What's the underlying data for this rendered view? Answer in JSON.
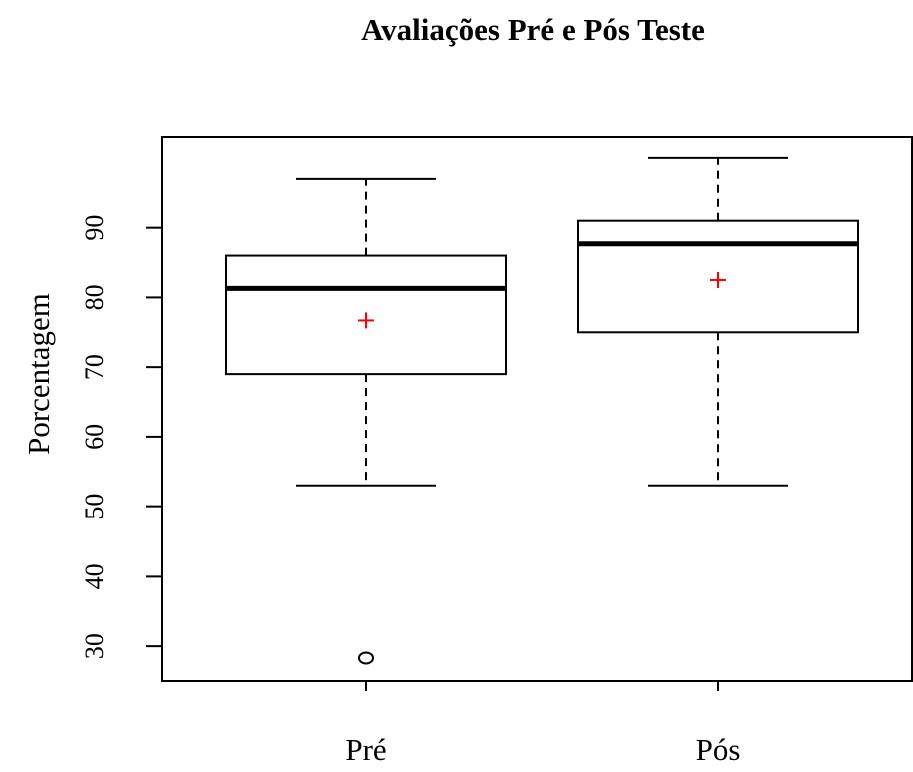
{
  "chart_data": {
    "type": "boxplot",
    "title": "Avaliações Pré e Pós Teste",
    "xlabel": "",
    "ylabel": "Porcentagem",
    "ylim": [
      25,
      103
    ],
    "yticks": [
      30,
      40,
      50,
      60,
      70,
      80,
      90
    ],
    "ytick_labels": [
      "30",
      "40",
      "50",
      "60",
      "70",
      "80",
      "90"
    ],
    "categories": [
      "Pré",
      "Pós"
    ],
    "boxes": [
      {
        "category": "Pré",
        "whisker_low": 53,
        "q1": 69,
        "median": 81.3,
        "q3": 86,
        "whisker_high": 97,
        "mean": 76.7,
        "outliers": [
          28.3
        ]
      },
      {
        "category": "Pós",
        "whisker_low": 53,
        "q1": 75,
        "median": 87.7,
        "q3": 91,
        "whisker_high": 100,
        "mean": 82.5,
        "outliers": []
      }
    ],
    "grid": false,
    "colors": {
      "box": "#000000",
      "median": "#000000",
      "mean_marker": "#ff0000",
      "outlier": "#000000"
    }
  }
}
